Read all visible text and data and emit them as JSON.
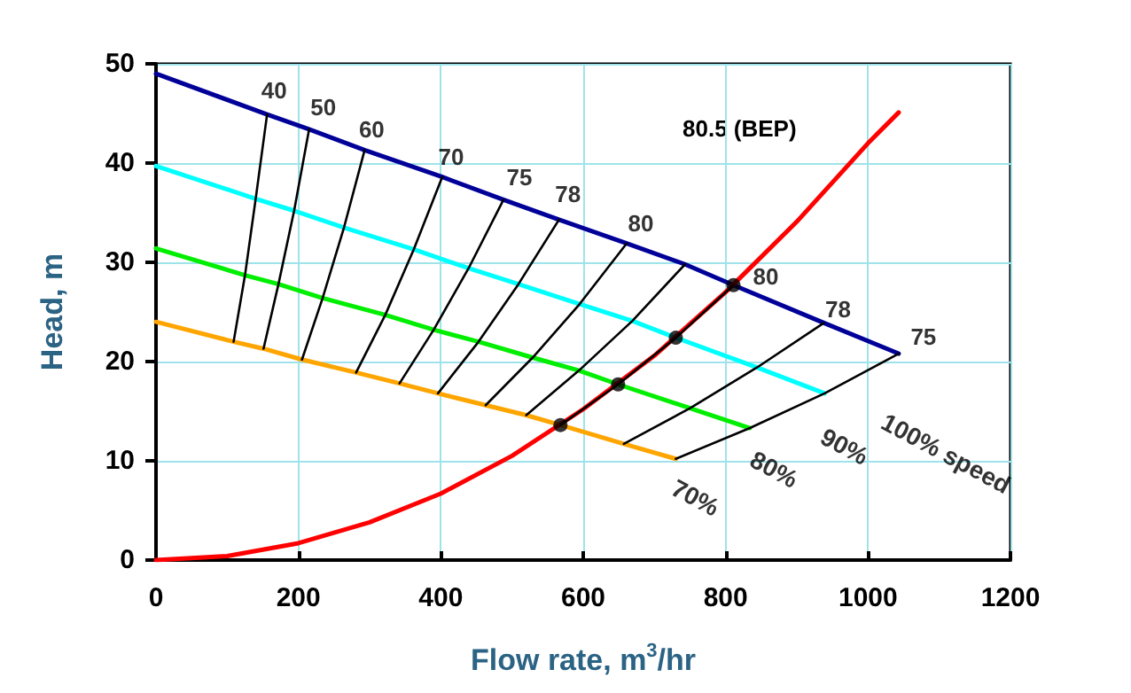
{
  "chart_data": {
    "type": "line",
    "xlabel": "Flow rate, m$^{3}$/hr",
    "ylabel": "Head, m",
    "xlim": [
      0,
      1200
    ],
    "ylim": [
      0,
      50
    ],
    "xticks": [
      0,
      200,
      400,
      600,
      800,
      1000,
      1200
    ],
    "yticks": [
      0,
      10,
      20,
      30,
      40,
      50
    ],
    "grid": true,
    "marker": "none",
    "line_style": "solid",
    "series": [
      {
        "color": "#000099",
        "x": [
          0,
          156,
          215,
          293,
          402,
          488,
          566,
          661,
          743,
          811,
          938,
          1043
        ],
        "values": [
          49,
          44.9,
          43.4,
          41.3,
          38.6,
          36.3,
          34.3,
          31.9,
          29.8,
          27.7,
          23.9,
          20.8
        ]
      },
      {
        "color": "#00ffff",
        "x": [
          0,
          140,
          194,
          264,
          362,
          439,
          509,
          595,
          669,
          730,
          844,
          939
        ],
        "values": [
          39.7,
          36.4,
          35.2,
          33.5,
          31.3,
          29.4,
          27.8,
          25.8,
          24.1,
          22.4,
          19.4,
          16.8
        ]
      },
      {
        "color": "#00ee00",
        "x": [
          0,
          125,
          172,
          234,
          322,
          390,
          453,
          529,
          594,
          649,
          750,
          834
        ],
        "values": [
          31.4,
          28.7,
          27.8,
          26.4,
          24.7,
          23.2,
          22,
          20.4,
          19.1,
          17.7,
          15.3,
          13.3
        ]
      },
      {
        "color": "#ffa500",
        "x": [
          0,
          109,
          151,
          205,
          281,
          342,
          396,
          463,
          520,
          568,
          657,
          730
        ],
        "values": [
          24,
          22,
          21.3,
          20.2,
          18.9,
          17.8,
          16.8,
          15.6,
          14.6,
          13.6,
          11.7,
          10.2
        ]
      },
      {
        "color": "#ff0000",
        "x": [
          0,
          100,
          200,
          300,
          400,
          500,
          600,
          700,
          800,
          900,
          1000,
          1043
        ],
        "values": [
          0,
          0.4,
          1.7,
          3.8,
          6.7,
          10.5,
          15.2,
          20.6,
          27,
          34.1,
          42,
          45.1
        ]
      },
      {
        "color": "#000000",
        "x": [
          156,
          140,
          125,
          109
        ],
        "values": [
          44.9,
          36.4,
          28.7,
          22
        ]
      },
      {
        "color": "#000000",
        "x": [
          215,
          194,
          172,
          151
        ],
        "values": [
          43.4,
          35.2,
          27.8,
          21.3
        ]
      },
      {
        "color": "#000000",
        "x": [
          293,
          264,
          234,
          205
        ],
        "values": [
          41.3,
          33.5,
          26.4,
          20.2
        ]
      },
      {
        "color": "#000000",
        "x": [
          402,
          362,
          322,
          281
        ],
        "values": [
          38.6,
          31.3,
          24.7,
          18.9
        ]
      },
      {
        "color": "#000000",
        "x": [
          488,
          439,
          390,
          342
        ],
        "values": [
          36.3,
          29.4,
          23.2,
          17.8
        ]
      },
      {
        "color": "#000000",
        "x": [
          566,
          509,
          453,
          396
        ],
        "values": [
          34.3,
          27.8,
          22,
          16.8
        ]
      },
      {
        "color": "#000000",
        "x": [
          661,
          595,
          529,
          463
        ],
        "values": [
          31.9,
          25.8,
          20.4,
          15.6
        ]
      },
      {
        "color": "#000000",
        "x": [
          743,
          669,
          594,
          520
        ],
        "values": [
          29.8,
          24.1,
          19.1,
          14.6
        ]
      },
      {
        "color": "#000000",
        "x": [
          811,
          730,
          649,
          568
        ],
        "values": [
          27.7,
          22.4,
          17.7,
          13.6
        ]
      },
      {
        "color": "#000000",
        "x": [
          938,
          844,
          750,
          657
        ],
        "values": [
          23.9,
          19.4,
          15.3,
          11.7
        ]
      },
      {
        "color": "#000000",
        "x": [
          1043,
          939,
          834,
          730
        ],
        "values": [
          20.8,
          16.8,
          13.3,
          10.2
        ]
      },
      {
        "type": "scatter",
        "marker": "circle",
        "color": "#000000",
        "x": [
          811,
          730,
          649,
          568
        ],
        "values": [
          27.7,
          22.4,
          17.7,
          13.6
        ]
      }
    ],
    "annotations": [
      {
        "text": "40",
        "x": 156,
        "y": 44.9
      },
      {
        "text": "50",
        "x": 215,
        "y": 43.4
      },
      {
        "text": "60",
        "x": 293,
        "y": 41.3
      },
      {
        "text": "70",
        "x": 402,
        "y": 38.6
      },
      {
        "text": "75",
        "x": 488,
        "y": 36.3
      },
      {
        "text": "78",
        "x": 566,
        "y": 34.3
      },
      {
        "text": "80",
        "x": 661,
        "y": 31.9
      },
      {
        "text": "80",
        "x": 811,
        "y": 27.7
      },
      {
        "text": "78",
        "x": 938,
        "y": 23.9
      },
      {
        "text": "75",
        "x": 1043,
        "y": 20.8
      },
      "80.5 (BEP)",
      {
        "text": "100% speed",
        "x": 1043,
        "y": 20.8
      },
      {
        "text": "90%",
        "x": 939,
        "y": 16.8
      },
      {
        "text": "80%",
        "x": 834,
        "y": 13.3
      },
      {
        "text": "70%",
        "x": 730,
        "y": 10.2
      }
    ]
  }
}
